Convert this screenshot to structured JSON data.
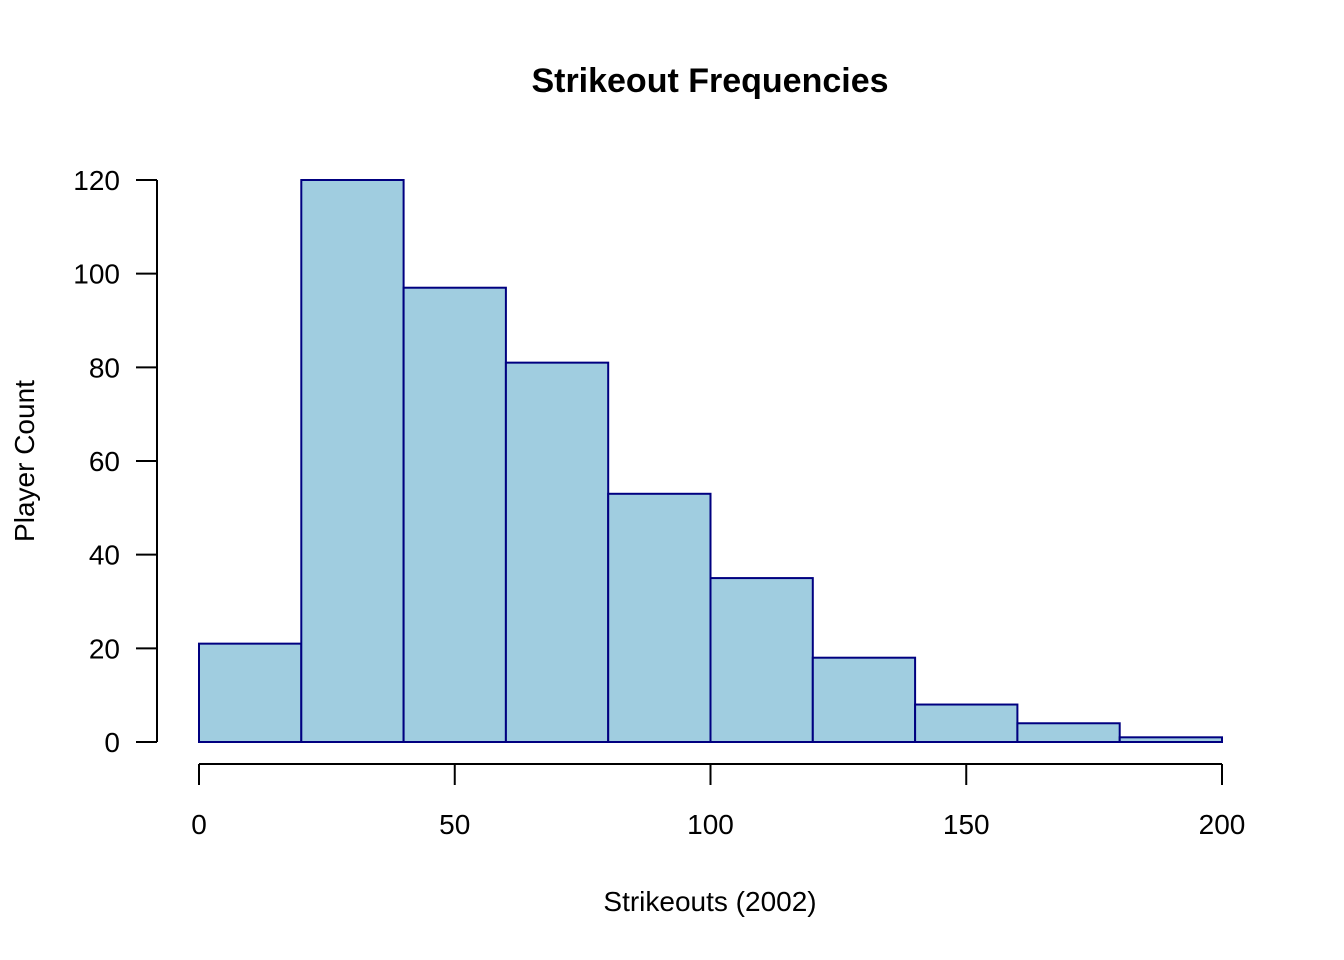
{
  "chart_data": {
    "type": "bar",
    "subtype": "histogram",
    "title": "Strikeout Frequencies",
    "xlabel": "Strikeouts (2002)",
    "ylabel": "Player Count",
    "bins": [
      {
        "start": 0,
        "end": 20,
        "count": 21
      },
      {
        "start": 20,
        "end": 40,
        "count": 120
      },
      {
        "start": 40,
        "end": 60,
        "count": 97
      },
      {
        "start": 60,
        "end": 80,
        "count": 81
      },
      {
        "start": 80,
        "end": 100,
        "count": 53
      },
      {
        "start": 100,
        "end": 120,
        "count": 35
      },
      {
        "start": 120,
        "end": 140,
        "count": 18
      },
      {
        "start": 140,
        "end": 160,
        "count": 8
      },
      {
        "start": 160,
        "end": 180,
        "count": 4
      },
      {
        "start": 180,
        "end": 200,
        "count": 1
      }
    ],
    "xlim": [
      0,
      200
    ],
    "ylim": [
      0,
      120
    ],
    "xticks": [
      0,
      50,
      100,
      150,
      200
    ],
    "yticks": [
      0,
      20,
      40,
      60,
      80,
      100,
      120
    ],
    "grid": false,
    "colors": {
      "fill": "#a0cde0",
      "border": "#000080"
    }
  }
}
